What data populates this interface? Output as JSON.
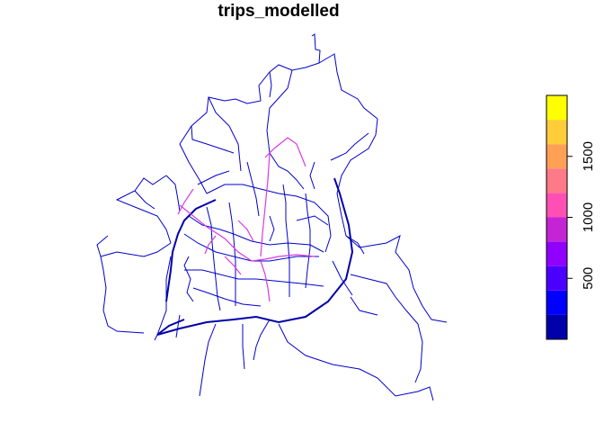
{
  "title": "trips_modelled",
  "legend": {
    "tick_labels": [
      "500",
      "1000",
      "1500"
    ],
    "tick_values": [
      500,
      1000,
      1500
    ],
    "range": [
      0,
      2000
    ],
    "bin_width": 200,
    "colors": [
      "#0000AA",
      "#0000FF",
      "#4B00FF",
      "#8F00FF",
      "#C324D4",
      "#FF4FB5",
      "#FF7A88",
      "#FFA055",
      "#FFCC3A",
      "#FFFF00"
    ]
  },
  "network_colors": {
    "low": "#0000CC",
    "high": "#E040E0"
  }
}
